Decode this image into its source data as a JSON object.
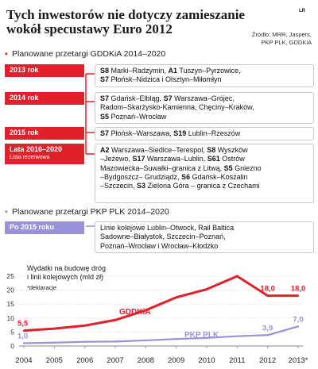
{
  "header": {
    "title": "Tych inwestorów nie dotyczy zamieszanie wokół specustawy Euro 2012",
    "tag": "LR",
    "source": [
      "Źródło: MRR, Jaspers,",
      "PKP PLK, GDDKiA"
    ]
  },
  "gddkia": {
    "heading": "Planowane przetargi GDDKiA 2014–2020",
    "rows": [
      {
        "label": "2013 rok",
        "sublabel": "",
        "parts": [
          [
            "S8",
            true
          ],
          [
            " Marki–Radzymin, ",
            false
          ],
          [
            "A1",
            true
          ],
          [
            " Tuszyn–Pyrzowice,\n",
            false
          ],
          [
            "S7",
            true
          ],
          [
            " Płońsk–Nidzica i Olsztyn–Miłomłyn",
            false
          ]
        ]
      },
      {
        "label": "2014 rok",
        "sublabel": "",
        "parts": [
          [
            "S7",
            true
          ],
          [
            " Gdańsk–Elbląg, ",
            false
          ],
          [
            "S7",
            true
          ],
          [
            " Warszawa–Grójec,\nRadom–Skarżysko-Kamienna, Chęciny–Kraków,\n",
            false
          ],
          [
            "S5",
            true
          ],
          [
            " Poznań–Wrocław",
            false
          ]
        ]
      },
      {
        "label": "2015 rok",
        "sublabel": "",
        "parts": [
          [
            "S7",
            true
          ],
          [
            " Płońsk–Warszawa, ",
            false
          ],
          [
            "S19",
            true
          ],
          [
            " Lublin–Rzeszów",
            false
          ]
        ]
      },
      {
        "label": "Lata 2016–2020",
        "sublabel": "Lista rezerwowa",
        "parts": [
          [
            "A2",
            true
          ],
          [
            " Warszawa–Siedlce–Terespol, ",
            false
          ],
          [
            "S8",
            true
          ],
          [
            " Wyszków\n–Jeżewo, ",
            false
          ],
          [
            "S17",
            true
          ],
          [
            " Warszawa–Lublin, ",
            false
          ],
          [
            "S61",
            true
          ],
          [
            " Ostrów\nMazowiecka–Suwałki–granica z Litwą, ",
            false
          ],
          [
            "S5",
            true
          ],
          [
            " Gniezno\n–Bydgoszcz– Grudziądz, ",
            false
          ],
          [
            "S6",
            true
          ],
          [
            " Gdańsk–Koszalin\n–Szczecin, ",
            false
          ],
          [
            "S3",
            true
          ],
          [
            " Zielona Góra – granica z Czechami",
            false
          ]
        ]
      }
    ]
  },
  "pkp": {
    "heading": "Planowane przetargi PKP PLK 2014–2020",
    "rows": [
      {
        "label": "Po 2015 roku",
        "sublabel": "",
        "parts": [
          [
            "Linie kolejowe Lublin–Otwock, Rail Baltica\nSadowne–Białystok, Szczecin–Poznań,\nPoznań–Wrocław i Wrocław–Kłodzko",
            false
          ]
        ]
      }
    ]
  },
  "chart_data": {
    "type": "line",
    "title": "Wydatki na budowę dróg i linii kolejowych (mld zł)",
    "note": "*deklaracje",
    "x": [
      "2004",
      "2005",
      "2006",
      "2007",
      "2008",
      "2009",
      "2010",
      "2011",
      "2012",
      "2013*"
    ],
    "ylim": [
      0,
      25
    ],
    "yticks": [
      "0",
      "5",
      "10",
      "15",
      "20",
      "25"
    ],
    "grid": true,
    "series": [
      {
        "name": "GDDKiA",
        "color": "#e2202b",
        "values": [
          5.5,
          6.2,
          7.3,
          9.3,
          12.8,
          17.4,
          20.3,
          25.0,
          18.0,
          18.0
        ],
        "labels": [
          "5,5",
          "",
          "",
          "",
          "",
          "",
          "",
          "",
          "18,0",
          "18,0"
        ]
      },
      {
        "name": "PKP PLK",
        "color": "#9a92d8",
        "values": [
          1.0,
          1.2,
          1.5,
          1.6,
          2.0,
          2.5,
          2.9,
          3.5,
          3.9,
          7.0
        ],
        "labels": [
          "1,0",
          "",
          "",
          "",
          "",
          "",
          "",
          "",
          "3,9",
          "7,0"
        ]
      }
    ]
  }
}
